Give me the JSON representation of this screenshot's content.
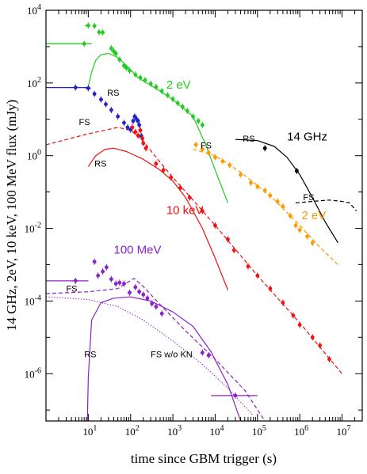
{
  "chart_data": {
    "type": "scatter",
    "title": "",
    "xlabel": "time since GBM trigger (s)",
    "ylabel": "14 GHz, 2eV, 10 keV, 100 MeV flux (mJy)",
    "xscale": "log",
    "yscale": "log",
    "xlim": [
      1,
      30000000
    ],
    "ylim": [
      5e-08,
      10000
    ],
    "x_ticks": [
      {
        "base": "10",
        "exp": "1",
        "value": 10
      },
      {
        "base": "10",
        "exp": "2",
        "value": 100
      },
      {
        "base": "10",
        "exp": "3",
        "value": 1000
      },
      {
        "base": "10",
        "exp": "4",
        "value": 10000
      },
      {
        "base": "10",
        "exp": "5",
        "value": 100000
      },
      {
        "base": "10",
        "exp": "6",
        "value": 1000000
      },
      {
        "base": "10",
        "exp": "7",
        "value": 10000000
      }
    ],
    "y_ticks": [
      {
        "base": "10",
        "exp": "-6",
        "value": 1e-06
      },
      {
        "base": "10",
        "exp": "-4",
        "value": 0.0001
      },
      {
        "base": "10",
        "exp": "-2",
        "value": 0.01
      },
      {
        "base": "10",
        "exp": "0",
        "value": 1
      },
      {
        "base": "10",
        "exp": "2",
        "value": 100
      },
      {
        "base": "10",
        "exp": "4",
        "value": 10000
      }
    ],
    "annotations": [
      {
        "text": "2 eV",
        "x": 700,
        "y": 70,
        "color": "#22cc22",
        "size": 15
      },
      {
        "text": "14 GHz",
        "x": 500000,
        "y": 2.6,
        "color": "#000000",
        "size": 15
      },
      {
        "text": "10 keV",
        "x": 700,
        "y": 0.025,
        "color": "#ee1111",
        "size": 15
      },
      {
        "text": "2 eV",
        "x": 1100000,
        "y": 0.018,
        "color": "#ff9900",
        "size": 15
      },
      {
        "text": "100 MeV",
        "x": 40,
        "y": 0.002,
        "color": "#8a22c8",
        "size": 15
      },
      {
        "text": "RS",
        "x": 28,
        "y": 45,
        "color": "#000000",
        "size": 11
      },
      {
        "text": "FS",
        "x": 6,
        "y": 7,
        "color": "#000000",
        "size": 11
      },
      {
        "text": "RS",
        "x": 14,
        "y": 0.5,
        "color": "#000000",
        "size": 11
      },
      {
        "text": "FS",
        "x": 4500,
        "y": 1.6,
        "color": "#000000",
        "size": 11
      },
      {
        "text": "RS",
        "x": 45000,
        "y": 2.4,
        "color": "#000000",
        "size": 11
      },
      {
        "text": "FS",
        "x": 1200000,
        "y": 0.06,
        "color": "#000000",
        "size": 11
      },
      {
        "text": "FS",
        "x": 3,
        "y": 0.00018,
        "color": "#000000",
        "size": 11
      },
      {
        "text": "RS",
        "x": 8,
        "y": 2.8e-06,
        "color": "#000000",
        "size": 11
      },
      {
        "text": "FS w/o KN",
        "x": 300,
        "y": 2.8e-06,
        "color": "#000000",
        "size": 11
      }
    ],
    "series": [
      {
        "color": "#22cc22",
        "points": [
          {
            "x": 10,
            "y": 3800,
            "xerr": [
              8.3,
              11
            ]
          },
          {
            "x": 14,
            "y": 3700
          },
          {
            "x": 18,
            "y": 2500
          },
          {
            "x": 22,
            "y": 2450
          },
          {
            "x": 8,
            "y": 1200,
            "xerr": [
              1,
              12
            ]
          },
          {
            "x": 35,
            "y": 900
          },
          {
            "x": 40,
            "y": 750
          },
          {
            "x": 45,
            "y": 640
          },
          {
            "x": 55,
            "y": 440
          },
          {
            "x": 70,
            "y": 300
          },
          {
            "x": 80,
            "y": 260
          },
          {
            "x": 95,
            "y": 220
          },
          {
            "x": 130,
            "y": 170
          },
          {
            "x": 170,
            "y": 140
          },
          {
            "x": 220,
            "y": 120
          },
          {
            "x": 300,
            "y": 95
          },
          {
            "x": 400,
            "y": 78
          },
          {
            "x": 550,
            "y": 60
          },
          {
            "x": 750,
            "y": 46
          },
          {
            "x": 1000,
            "y": 36
          },
          {
            "x": 1300,
            "y": 28
          },
          {
            "x": 1700,
            "y": 22
          },
          {
            "x": 2200,
            "y": 17
          },
          {
            "x": 3000,
            "y": 12
          },
          {
            "x": 4000,
            "y": 9
          },
          {
            "x": 5000,
            "y": 7
          }
        ]
      },
      {
        "color": "#2222cc",
        "points": [
          {
            "x": 5,
            "y": 75,
            "xerr": [
              1,
              10
            ]
          },
          {
            "x": 10,
            "y": 72,
            "xerr": [
              8.5,
              11.5
            ]
          },
          {
            "x": 14,
            "y": 50
          },
          {
            "x": 20,
            "y": 35
          },
          {
            "x": 26,
            "y": 26
          },
          {
            "x": 35,
            "y": 18
          },
          {
            "x": 50,
            "y": 12
          },
          {
            "x": 70,
            "y": 8
          },
          {
            "x": 85,
            "y": 6
          },
          {
            "x": 100,
            "y": 5.2
          },
          {
            "x": 115,
            "y": 9
          },
          {
            "x": 125,
            "y": 12
          },
          {
            "x": 140,
            "y": 10
          },
          {
            "x": 150,
            "y": 9
          },
          {
            "x": 160,
            "y": 7
          },
          {
            "x": 170,
            "y": 5
          },
          {
            "x": 180,
            "y": 3.5
          }
        ]
      },
      {
        "color": "#ee1111",
        "points": [
          {
            "x": 110,
            "y": 6
          },
          {
            "x": 130,
            "y": 4.5
          },
          {
            "x": 150,
            "y": 3.6
          },
          {
            "x": 170,
            "y": 5
          },
          {
            "x": 190,
            "y": 3
          },
          {
            "x": 200,
            "y": 2.2
          },
          {
            "x": 230,
            "y": 1.6
          },
          {
            "x": 400,
            "y": 0.6
          },
          {
            "x": 600,
            "y": 0.4
          },
          {
            "x": 900,
            "y": 0.25
          },
          {
            "x": 1500,
            "y": 0.13
          },
          {
            "x": 2500,
            "y": 0.07
          },
          {
            "x": 5000,
            "y": 0.03
          },
          {
            "x": 10000,
            "y": 0.012
          },
          {
            "x": 20000,
            "y": 0.005
          },
          {
            "x": 28000,
            "y": 0.0025
          },
          {
            "x": 60000,
            "y": 0.0009
          },
          {
            "x": 100000,
            "y": 0.0005
          },
          {
            "x": 200000,
            "y": 0.00022
          },
          {
            "x": 400000,
            "y": 9e-05
          },
          {
            "x": 700000,
            "y": 4e-05
          },
          {
            "x": 1000000,
            "y": 2.2e-05
          },
          {
            "x": 2000000,
            "y": 1e-05
          },
          {
            "x": 3000000,
            "y": 6e-06
          },
          {
            "x": 5000000,
            "y": 2.5e-06
          }
        ]
      },
      {
        "color": "#ff9900",
        "points": [
          {
            "x": 3500,
            "y": 2
          },
          {
            "x": 5000,
            "y": 1.5
          },
          {
            "x": 7000,
            "y": 1.2
          },
          {
            "x": 10000,
            "y": 0.9
          },
          {
            "x": 15000,
            "y": 0.7
          },
          {
            "x": 22000,
            "y": 0.55
          },
          {
            "x": 40000,
            "y": 0.3
          },
          {
            "x": 70000,
            "y": 0.18
          },
          {
            "x": 100000,
            "y": 0.14
          },
          {
            "x": 150000,
            "y": 0.11
          },
          {
            "x": 200000,
            "y": 0.08
          },
          {
            "x": 300000,
            "y": 0.055
          },
          {
            "x": 400000,
            "y": 0.04
          },
          {
            "x": 600000,
            "y": 0.022
          },
          {
            "x": 800000,
            "y": 0.012
          },
          {
            "x": 1000000,
            "y": 0.009
          },
          {
            "x": 1500000,
            "y": 0.006
          },
          {
            "x": 2000000,
            "y": 0.004
          }
        ]
      },
      {
        "color": "#000000",
        "points": [
          {
            "x": 150000,
            "y": 1.6
          },
          {
            "x": 850000,
            "y": 0.38
          }
        ]
      },
      {
        "color": "#8a22c8",
        "points": [
          {
            "x": 5,
            "y": 0.00036,
            "xerr": [
              1,
              10
            ]
          },
          {
            "x": 14,
            "y": 0.0012
          },
          {
            "x": 17,
            "y": 0.0005
          },
          {
            "x": 22,
            "y": 0.00065
          },
          {
            "x": 27,
            "y": 0.00085
          },
          {
            "x": 35,
            "y": 0.0004
          },
          {
            "x": 45,
            "y": 0.0003
          },
          {
            "x": 55,
            "y": 0.00032
          },
          {
            "x": 70,
            "y": 0.0003
          },
          {
            "x": 95,
            "y": 0.00017
          },
          {
            "x": 130,
            "y": 0.00024
          },
          {
            "x": 160,
            "y": 0.00018
          },
          {
            "x": 200,
            "y": 0.00015
          },
          {
            "x": 250,
            "y": 0.00012
          },
          {
            "x": 320,
            "y": 8.5e-05
          },
          {
            "x": 400,
            "y": 7e-05
          },
          {
            "x": 550,
            "y": 4.5e-05
          },
          {
            "x": 5000,
            "y": 3.8e-06
          },
          {
            "x": 7000,
            "y": 3.2e-06
          },
          {
            "x": 30000,
            "y": 2.5e-07,
            "xerr": [
              8000,
              100000
            ]
          }
        ]
      }
    ],
    "curves": [
      {
        "color": "#22cc22",
        "style": "solid",
        "points": [
          [
            10,
            80
          ],
          [
            12,
            200
          ],
          [
            15,
            420
          ],
          [
            20,
            600
          ],
          [
            30,
            650
          ],
          [
            50,
            500
          ],
          [
            80,
            300
          ],
          [
            150,
            140
          ],
          [
            400,
            70
          ],
          [
            1000,
            35
          ],
          [
            3000,
            12
          ],
          [
            6000,
            2
          ],
          [
            10000,
            0.4
          ],
          [
            20000,
            0.05
          ]
        ]
      },
      {
        "color": "#ff9900",
        "style": "dashed",
        "points": [
          [
            3000,
            1.5
          ],
          [
            10000,
            1.0
          ],
          [
            40000,
            0.35
          ],
          [
            100000,
            0.15
          ],
          [
            300000,
            0.05
          ],
          [
            1000000,
            0.012
          ],
          [
            3000000,
            0.003
          ],
          [
            8000000,
            0.001
          ]
        ]
      },
      {
        "color": "#000000",
        "style": "solid",
        "points": [
          [
            30000,
            2.8
          ],
          [
            100000,
            2.6
          ],
          [
            250000,
            1.8
          ],
          [
            500000,
            0.9
          ],
          [
            1000000,
            0.3
          ],
          [
            2000000,
            0.07
          ],
          [
            4000000,
            0.015
          ],
          [
            8000000,
            0.004
          ]
        ]
      },
      {
        "color": "#000000",
        "style": "dashed",
        "points": [
          [
            800000,
            0.05
          ],
          [
            2000000,
            0.055
          ],
          [
            5000000,
            0.06
          ],
          [
            10000000,
            0.055
          ],
          [
            15000000,
            0.05
          ],
          [
            22000000,
            0.03
          ]
        ]
      },
      {
        "color": "#ee1111",
        "style": "dashed",
        "points": [
          [
            1,
            2
          ],
          [
            10,
            4
          ],
          [
            50,
            6
          ],
          [
            100,
            5
          ],
          [
            200,
            2.5
          ],
          [
            400,
            0.9
          ],
          [
            1000,
            0.25
          ],
          [
            3000,
            0.06
          ],
          [
            10000,
            0.012
          ],
          [
            100000,
            0.0005
          ],
          [
            1000000,
            2.5e-05
          ],
          [
            10000000,
            1e-06
          ]
        ]
      },
      {
        "color": "#ee1111",
        "style": "solid",
        "points": [
          [
            10,
            0.5
          ],
          [
            15,
            1
          ],
          [
            25,
            1.5
          ],
          [
            40,
            1.6
          ],
          [
            80,
            1.3
          ],
          [
            200,
            0.8
          ],
          [
            500,
            0.4
          ],
          [
            1000,
            0.2
          ],
          [
            2000,
            0.07
          ],
          [
            5000,
            0.01
          ],
          [
            10000,
            0.0015
          ],
          [
            20000,
            0.0002
          ]
        ]
      },
      {
        "color": "#8a22c8",
        "style": "dashed",
        "points": [
          [
            1,
            0.00016
          ],
          [
            10,
            0.00018
          ],
          [
            50,
            0.00022
          ],
          [
            120,
            0.00042
          ],
          [
            200,
            0.00025
          ],
          [
            500,
            8e-05
          ],
          [
            2000,
            1.5e-05
          ],
          [
            10000,
            2.5e-06
          ],
          [
            50000,
            3.5e-07
          ],
          [
            150000,
            5e-08
          ]
        ]
      },
      {
        "color": "#8a22c8",
        "style": "dotted",
        "points": [
          [
            1,
            0.00013
          ],
          [
            10,
            0.00011
          ],
          [
            50,
            7e-05
          ],
          [
            200,
            3e-05
          ],
          [
            1000,
            8e-06
          ],
          [
            5000,
            1.8e-06
          ],
          [
            20000,
            4e-07
          ],
          [
            80000,
            7e-08
          ]
        ]
      },
      {
        "color": "#8a22c8",
        "style": "solid",
        "points": [
          [
            9.5,
            5e-08
          ],
          [
            10,
            8e-07
          ],
          [
            12,
            3e-05
          ],
          [
            20,
            9e-05
          ],
          [
            40,
            0.00012
          ],
          [
            100,
            0.00013
          ],
          [
            300,
            0.0001
          ],
          [
            1000,
            5e-05
          ],
          [
            3000,
            2e-05
          ],
          [
            8000,
            4e-06
          ],
          [
            20000,
            5e-07
          ],
          [
            40000,
            5e-08
          ]
        ]
      }
    ]
  }
}
